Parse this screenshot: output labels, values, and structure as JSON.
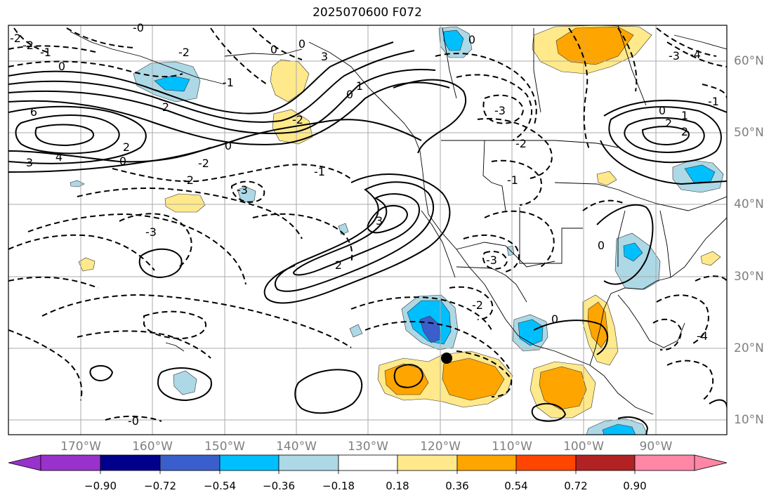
{
  "title": "2025070600 F072",
  "map": {
    "lat_labels": [
      "60°N",
      "50°N",
      "40°N",
      "30°N",
      "20°N",
      "10°N"
    ],
    "lon_labels": [
      "170°W",
      "160°W",
      "150°W",
      "140°W",
      "130°W",
      "120°W",
      "110°W",
      "100°W",
      "90°W"
    ],
    "contour_labels": [
      {
        "text": "-2"
      },
      {
        "text": "-2"
      },
      {
        "text": "-1"
      },
      {
        "text": "0"
      },
      {
        "text": "6"
      },
      {
        "text": "4"
      },
      {
        "text": "3"
      },
      {
        "text": "2"
      },
      {
        "text": "0"
      },
      {
        "text": "-2"
      },
      {
        "text": "-2"
      },
      {
        "text": "-3"
      },
      {
        "text": "-1"
      },
      {
        "text": "0"
      },
      {
        "text": "-1"
      },
      {
        "text": "0"
      },
      {
        "text": "0"
      },
      {
        "text": "-0"
      },
      {
        "text": "0"
      },
      {
        "text": "3"
      },
      {
        "text": "-2"
      },
      {
        "text": "-2"
      },
      {
        "text": "2"
      },
      {
        "text": "1"
      },
      {
        "text": "0"
      },
      {
        "text": "3"
      },
      {
        "text": "2"
      },
      {
        "text": "-3"
      },
      {
        "text": "-2"
      },
      {
        "text": "-1"
      },
      {
        "text": "-3"
      },
      {
        "text": "-2"
      },
      {
        "text": "0"
      },
      {
        "text": "0"
      },
      {
        "text": "-4"
      },
      {
        "text": "-3"
      },
      {
        "text": "0"
      },
      {
        "text": "1"
      },
      {
        "text": "2"
      },
      {
        "text": "2"
      },
      {
        "text": "-1"
      },
      {
        "text": "-3"
      },
      {
        "text": "-4"
      },
      {
        "text": "-0"
      }
    ],
    "marker": "black-dot"
  },
  "colorbar": {
    "colors": [
      "#9932cc",
      "#00008b",
      "#3a5fcd",
      "#00bfff",
      "#add8e6",
      "#ffffff",
      "#ffe98a",
      "#ffa500",
      "#ff4500",
      "#b22222",
      "#ff86a5"
    ],
    "labels": [
      "−0.90",
      "−0.72",
      "−0.54",
      "−0.36",
      "−0.18",
      "0.18",
      "0.36",
      "0.54",
      "0.72",
      "0.90"
    ]
  }
}
